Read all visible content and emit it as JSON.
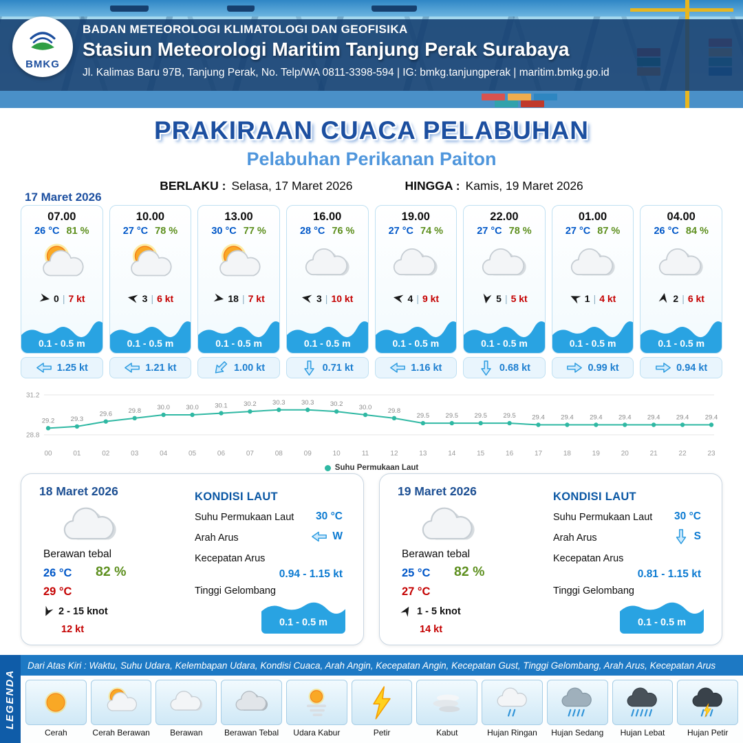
{
  "header": {
    "logo_text": "BMKG",
    "agency": "BADAN METEOROLOGI KLIMATOLOGI DAN GEOFISIKA",
    "station": "Stasiun Meteorologi Maritim Tanjung Perak Surabaya",
    "address": "Jl. Kalimas Baru 97B, Tanjung Perak, No. Telp/WA 0811-3398-594 | IG: bmkg.tanjungperak | maritim.bmkg.go.id"
  },
  "title": "PRAKIRAAN CUACA PELABUHAN",
  "subtitle": "Pelabuhan Perikanan Paiton",
  "validity": {
    "berlaku_label": "BERLAKU :",
    "berlaku_value": "Selasa, 17 Maret 2026",
    "hingga_label": "HINGGA :",
    "hingga_value": "Kamis, 19 Maret 2026"
  },
  "forecast_date": "17 Maret 2026",
  "ui": {
    "divider": "|"
  },
  "colors": {
    "accent_blue": "#1c4fa0",
    "wave_blue": "#29a3e2",
    "temp_blue": "#0057c8",
    "humidity_green": "#5d8f1e",
    "alert_red": "#c40000",
    "sst_line": "#2fb8a3"
  },
  "forecast_cards": [
    {
      "time": "07.00",
      "temp": "26 °C",
      "humidity": "81 %",
      "icon": "sun-cloud",
      "wind_dir_deg": 10,
      "wind_speed": "0",
      "wind_gust": "7 kt",
      "wave_height": "0.1 - 0.5 m",
      "current_dir_deg": 180,
      "current_speed": "1.25 kt"
    },
    {
      "time": "10.00",
      "temp": "27 °C",
      "humidity": "78 %",
      "icon": "sun-cloud",
      "wind_dir_deg": 190,
      "wind_speed": "3",
      "wind_gust": "6 kt",
      "wave_height": "0.1 - 0.5 m",
      "current_dir_deg": 180,
      "current_speed": "1.21 kt"
    },
    {
      "time": "13.00",
      "temp": "30 °C",
      "humidity": "77 %",
      "icon": "sun-cloud",
      "wind_dir_deg": 10,
      "wind_speed": "18",
      "wind_gust": "7 kt",
      "wave_height": "0.1 - 0.5 m",
      "current_dir_deg": 135,
      "current_speed": "1.00 kt"
    },
    {
      "time": "16.00",
      "temp": "28 °C",
      "humidity": "76 %",
      "icon": "cloud",
      "wind_dir_deg": 190,
      "wind_speed": "3",
      "wind_gust": "10 kt",
      "wave_height": "0.1 - 0.5 m",
      "current_dir_deg": 90,
      "current_speed": "0.71 kt"
    },
    {
      "time": "19.00",
      "temp": "27 °C",
      "humidity": "74 %",
      "icon": "cloud",
      "wind_dir_deg": 190,
      "wind_speed": "4",
      "wind_gust": "9 kt",
      "wave_height": "0.1 - 0.5 m",
      "current_dir_deg": 180,
      "current_speed": "1.16 kt"
    },
    {
      "time": "22.00",
      "temp": "27 °C",
      "humidity": "78 %",
      "icon": "cloud",
      "wind_dir_deg": 100,
      "wind_speed": "5",
      "wind_gust": "5 kt",
      "wave_height": "0.1 - 0.5 m",
      "current_dir_deg": 90,
      "current_speed": "0.68 kt"
    },
    {
      "time": "01.00",
      "temp": "27 °C",
      "humidity": "87 %",
      "icon": "cloud",
      "wind_dir_deg": 205,
      "wind_speed": "1",
      "wind_gust": "4 kt",
      "wave_height": "0.1 - 0.5 m",
      "current_dir_deg": 0,
      "current_speed": "0.99 kt"
    },
    {
      "time": "04.00",
      "temp": "26 °C",
      "humidity": "84 %",
      "icon": "cloud",
      "wind_dir_deg": 280,
      "wind_speed": "2",
      "wind_gust": "6 kt",
      "wave_height": "0.1 - 0.5 m",
      "current_dir_deg": 0,
      "current_speed": "0.94 kt"
    }
  ],
  "chart_data": {
    "type": "line",
    "series_name": "Suhu Permukaan Laut",
    "x": [
      "00",
      "01",
      "02",
      "03",
      "04",
      "05",
      "06",
      "07",
      "08",
      "09",
      "10",
      "11",
      "12",
      "13",
      "14",
      "15",
      "16",
      "17",
      "18",
      "19",
      "20",
      "21",
      "22",
      "23"
    ],
    "values": [
      29.2,
      29.3,
      29.6,
      29.8,
      30.0,
      30.0,
      30.1,
      30.2,
      30.3,
      30.3,
      30.2,
      30.0,
      29.8,
      29.5,
      29.5,
      29.5,
      29.5,
      29.4,
      29.4,
      29.4,
      29.4,
      29.4,
      29.4,
      29.4
    ],
    "ylim": [
      28.8,
      31.2
    ],
    "line_color": "#2fb8a3",
    "grid": true,
    "legend_position": "bottom"
  },
  "daily_cards": [
    {
      "date": "18 Maret 2026",
      "icon": "cloud",
      "condition": "Berawan tebal",
      "temp_low": "26 °C",
      "humidity": "82 %",
      "temp_high": "29 °C",
      "wind_dir_deg": 115,
      "wind_range": "2  - 15 knot",
      "wind_gust": "12 kt",
      "sea": {
        "title": "KONDISI LAUT",
        "sst_label": "Suhu Permukaan Laut",
        "sst_value": "30 °C",
        "current_dir_label": "Arah Arus",
        "current_dir_deg": 180,
        "current_dir_text": "W",
        "current_speed_label": "Kecepatan Arus",
        "current_speed_value": "0.94  - 1.15 kt",
        "wave_label": "Tinggi Gelombang",
        "wave_value": "0.1 - 0.5 m"
      }
    },
    {
      "date": "19 Maret 2026",
      "icon": "cloud",
      "condition": "Berawan tebal",
      "temp_low": "25 °C",
      "humidity": "82 %",
      "temp_high": "27 °C",
      "wind_dir_deg": 300,
      "wind_range": "1  - 5 knot",
      "wind_gust": "14 kt",
      "sea": {
        "title": "KONDISI LAUT",
        "sst_label": "Suhu Permukaan Laut",
        "sst_value": "30 °C",
        "current_dir_label": "Arah Arus",
        "current_dir_deg": 90,
        "current_dir_text": "S",
        "current_speed_label": "Kecepatan Arus",
        "current_speed_value": "0.81  - 1.15 kt",
        "wave_label": "Tinggi Gelombang",
        "wave_value": "0.1 - 0.5 m"
      }
    }
  ],
  "legend": {
    "vertical_label": "LEGENDA",
    "description": "Dari Atas Kiri : Waktu, Suhu Udara, Kelembapan Udara, Kondisi Cuaca, Arah Angin, Kecepatan Angin, Kecepatan Gust, Tinggi Gelombang, Arah Arus, Kecepatan Arus",
    "items": [
      {
        "label": "Cerah",
        "icon": "sun"
      },
      {
        "label": "Cerah Berawan",
        "icon": "sun-cloud"
      },
      {
        "label": "Berawan",
        "icon": "cloud"
      },
      {
        "label": "Berawan Tebal",
        "icon": "cloud-thick"
      },
      {
        "label": "Udara Kabur",
        "icon": "haze"
      },
      {
        "label": "Petir",
        "icon": "thunder"
      },
      {
        "label": "Kabut",
        "icon": "fog"
      },
      {
        "label": "Hujan Ringan",
        "icon": "rain-light"
      },
      {
        "label": "Hujan Sedang",
        "icon": "rain-medium"
      },
      {
        "label": "Hujan Lebat",
        "icon": "rain-heavy"
      },
      {
        "label": "Hujan Petir",
        "icon": "rain-thunder"
      }
    ]
  }
}
